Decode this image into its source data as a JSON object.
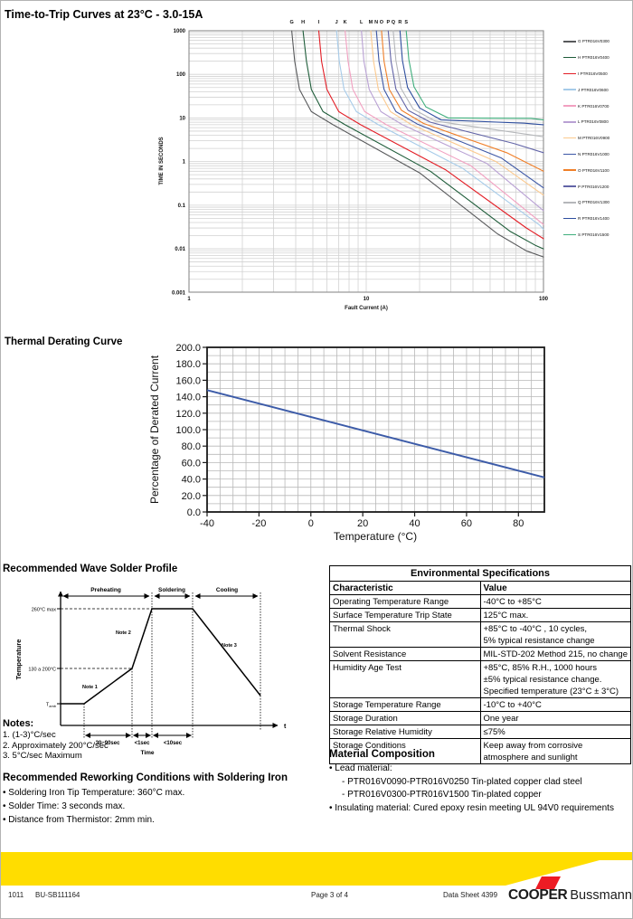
{
  "chart_data": [
    {
      "type": "line",
      "title": "Time-to-Trip Curves at 23°C - 3.0-15A",
      "xlabel": "Fault Current (A)",
      "ylabel": "TIME IN SECONDS",
      "x_scale": "log",
      "y_scale": "log",
      "x_range": [
        1,
        100
      ],
      "y_range": [
        0.001,
        1000
      ],
      "x_ticks": [
        "1",
        "10",
        "100"
      ],
      "y_ticks": [
        "1000",
        "100",
        "10",
        "1",
        "0.1",
        "0.01",
        "0.001"
      ],
      "grid": true,
      "legend_position": "right",
      "series": [
        {
          "letter": "G",
          "part": "PTR016V0300",
          "color": "#58595b",
          "points": [
            [
              3.8,
              1000
            ],
            [
              3.95,
              200
            ],
            [
              4.2,
              45
            ],
            [
              4.9,
              14
            ],
            [
              6.5,
              7
            ],
            [
              20,
              0.55
            ],
            [
              55,
              0.022
            ],
            [
              80,
              0.009
            ],
            [
              100,
              0.0065
            ]
          ]
        },
        {
          "letter": "H",
          "part": "PTR016V0400",
          "color": "#1e5c39",
          "points": [
            [
              4.4,
              1000
            ],
            [
              4.6,
              200
            ],
            [
              4.9,
              45
            ],
            [
              5.7,
              14
            ],
            [
              7.6,
              7
            ],
            [
              23,
              0.6
            ],
            [
              65,
              0.025
            ],
            [
              90,
              0.012
            ],
            [
              100,
              0.01
            ]
          ]
        },
        {
          "letter": "I",
          "part": "PTR016V0500",
          "color": "#e31e26",
          "points": [
            [
              5.4,
              1000
            ],
            [
              5.6,
              200
            ],
            [
              6,
              45
            ],
            [
              7,
              14
            ],
            [
              9.3,
              7
            ],
            [
              28,
              0.65
            ],
            [
              80,
              0.03
            ],
            [
              100,
              0.017
            ]
          ]
        },
        {
          "letter": "J",
          "part": "PTR016V0600",
          "color": "#a6cbe9",
          "points": [
            [
              6.8,
              1000
            ],
            [
              7.05,
              200
            ],
            [
              7.5,
              45
            ],
            [
              8.8,
              14
            ],
            [
              11.7,
              7
            ],
            [
              35,
              0.7
            ],
            [
              95,
              0.035
            ],
            [
              100,
              0.028
            ]
          ]
        },
        {
          "letter": "K",
          "part": "PTR016V0700",
          "color": "#f2a0c1",
          "points": [
            [
              7.6,
              1000
            ],
            [
              7.9,
              200
            ],
            [
              8.4,
              45
            ],
            [
              9.8,
              14
            ],
            [
              13,
              7
            ],
            [
              39,
              0.8
            ],
            [
              100,
              0.036
            ]
          ]
        },
        {
          "letter": "L",
          "part": "PTR016V0800",
          "color": "#b9a1d4",
          "points": [
            [
              9.4,
              1000
            ],
            [
              9.7,
              200
            ],
            [
              10.4,
              45
            ],
            [
              12.1,
              14
            ],
            [
              16,
              7
            ],
            [
              48,
              0.9
            ],
            [
              100,
              0.075
            ]
          ]
        },
        {
          "letter": "M",
          "part": "PTR016V0900",
          "color": "#fbc98e",
          "points": [
            [
              10.6,
              1000
            ],
            [
              11,
              200
            ],
            [
              11.7,
              45
            ],
            [
              13.7,
              14
            ],
            [
              18,
              7
            ],
            [
              54,
              1
            ],
            [
              100,
              0.17
            ]
          ]
        },
        {
          "letter": "N",
          "part": "PTR016V1000",
          "color": "#3b56a5",
          "points": [
            [
              11.4,
              1000
            ],
            [
              11.8,
              200
            ],
            [
              12.6,
              45
            ],
            [
              14.7,
              14
            ],
            [
              19.5,
              7.2
            ],
            [
              58,
              1.2
            ],
            [
              100,
              0.25
            ]
          ]
        },
        {
          "letter": "O",
          "part": "PTR016V1100",
          "color": "#f07f28",
          "points": [
            [
              12.2,
              1000
            ],
            [
              12.6,
              200
            ],
            [
              13.5,
              45
            ],
            [
              15.8,
              15
            ],
            [
              21,
              7.5
            ],
            [
              62,
              1.6
            ],
            [
              100,
              0.6
            ]
          ]
        },
        {
          "letter": "P",
          "part": "PTR016V1200",
          "color": "#6264a7",
          "points": [
            [
              13.3,
              1000
            ],
            [
              13.8,
              200
            ],
            [
              14.7,
              46
            ],
            [
              17.2,
              15
            ],
            [
              23,
              8
            ],
            [
              68,
              2.6
            ],
            [
              100,
              1.6
            ]
          ]
        },
        {
          "letter": "Q",
          "part": "PTR016V1300",
          "color": "#b5b7ba",
          "points": [
            [
              14.2,
              1000
            ],
            [
              14.7,
              210
            ],
            [
              15.7,
              48
            ],
            [
              18.4,
              16
            ],
            [
              24.5,
              8.5
            ],
            [
              72,
              4.5
            ],
            [
              100,
              3.7
            ]
          ]
        },
        {
          "letter": "R",
          "part": "PTR016V1400",
          "color": "#2d4d9e",
          "points": [
            [
              15.5,
              1000
            ],
            [
              16,
              210
            ],
            [
              17.1,
              50
            ],
            [
              20,
              17
            ],
            [
              26.5,
              9
            ],
            [
              78,
              7.6
            ],
            [
              100,
              7
            ]
          ]
        },
        {
          "letter": "S",
          "part": "PTR016V1500",
          "color": "#3fae7c",
          "points": [
            [
              16.8,
              1000
            ],
            [
              17.4,
              220
            ],
            [
              18.6,
              52
            ],
            [
              21.7,
              18
            ],
            [
              29,
              10
            ],
            [
              85,
              9.8
            ],
            [
              100,
              9
            ]
          ]
        }
      ]
    },
    {
      "type": "line",
      "title": "Thermal Derating Curve",
      "xlabel": "Temperature (°C)",
      "ylabel": "Percentage of Derated Current",
      "x_range": [
        -40,
        90
      ],
      "y_range": [
        0,
        200
      ],
      "x_tick_values": [
        -40,
        -20,
        0,
        20,
        40,
        60,
        80
      ],
      "x_ticks": [
        "-40",
        "-20",
        "0",
        "20",
        "40",
        "60",
        "80"
      ],
      "y_tick_step": 20,
      "y_ticks": [
        "200.0",
        "180.0",
        "160.0",
        "140.0",
        "120.0",
        "100.0",
        "80.0",
        "60.0",
        "40.0",
        "20.0",
        "0.0"
      ],
      "grid_minor_x": 5,
      "grid_minor_y": 10,
      "line": {
        "color": "#3c5ba8",
        "points": [
          [
            -40,
            148
          ],
          [
            90,
            42
          ]
        ]
      }
    }
  ],
  "solder": {
    "heading": "Recommended Wave Solder Profile",
    "axis_label": "Temperature",
    "t_label": "t",
    "time_label": "Time",
    "temp_max": "260°C max",
    "temp_mid": "130 a 200°C",
    "t_main": "T",
    "t_sub": "amb",
    "phases": {
      "preheating": "Preheating",
      "soldering": "Soldering",
      "cooling": "Cooling"
    },
    "note1": "Note 1",
    "note2": "Note 2",
    "note3": "Note 3",
    "spans": {
      "s1": "30~90sec",
      "s2": "<1sec",
      "s3": "<10sec"
    }
  },
  "notes": {
    "heading": "Notes:",
    "items": [
      {
        "text": "1. (1-3)°C/sec"
      },
      {
        "text": "2. Approximately 200°C/sec"
      },
      {
        "text": "3. 5°C/sec Maximum"
      }
    ]
  },
  "rework": {
    "heading": "Recommended Reworking Conditions with Soldering Iron",
    "items": [
      {
        "bullet": true,
        "text": "Soldering Iron Tip Temperature: 360°C max."
      },
      {
        "bullet": true,
        "text": "Solder Time: 3 seconds max."
      },
      {
        "bullet": true,
        "text": "Distance from Thermistor: 2mm min."
      }
    ]
  },
  "env_table": {
    "title": "Environmental Specifications",
    "columns": [
      "Characteristic",
      "Value"
    ],
    "rows": [
      [
        "Operating Temperature Range",
        "-40°C to +85°C"
      ],
      [
        "Surface Temperature Trip State",
        "125°C max."
      ],
      [
        "Thermal Shock",
        "+85°C  to -40°C , 10 cycles,\n5% typical resistance change"
      ],
      [
        "Solvent Resistance",
        "MIL-STD-202 Method 215, no change"
      ],
      [
        "Humidity Age Test",
        "+85°C, 85% R.H., 1000 hours\n±5% typical resistance change.\nSpecified temperature (23°C ± 3°C)"
      ],
      [
        "Storage Temperature Range",
        "-10°C to +40°C"
      ],
      [
        "Storage Duration",
        "One year"
      ],
      [
        "Storage Relative Humidity",
        "≤75%"
      ],
      [
        "Storage Conditions",
        "Keep away from corrosive atmosphere and sunlight"
      ]
    ]
  },
  "material": {
    "heading": "Material Composition",
    "items": [
      {
        "bullet": true,
        "text": "Lead material:"
      },
      {
        "indent": true,
        "text": "- PTR016V0090-PTR016V0250 Tin-plated copper clad steel"
      },
      {
        "indent": true,
        "text": "- PTR016V0300-PTR016V1500 Tin-plated copper"
      },
      {
        "bullet": true,
        "text": "Insulating material: Cured epoxy resin meeting UL 94V0 requirements"
      }
    ]
  },
  "footer": {
    "code1": "1011",
    "code2": "BU-SB111164",
    "page": "Page 3 of 4",
    "sheet": "Data Sheet 4399",
    "brand_bold": "COOPER",
    "brand_regular": "Bussmann",
    "yellow": "#ffdd00",
    "red": "#ed1c24"
  }
}
